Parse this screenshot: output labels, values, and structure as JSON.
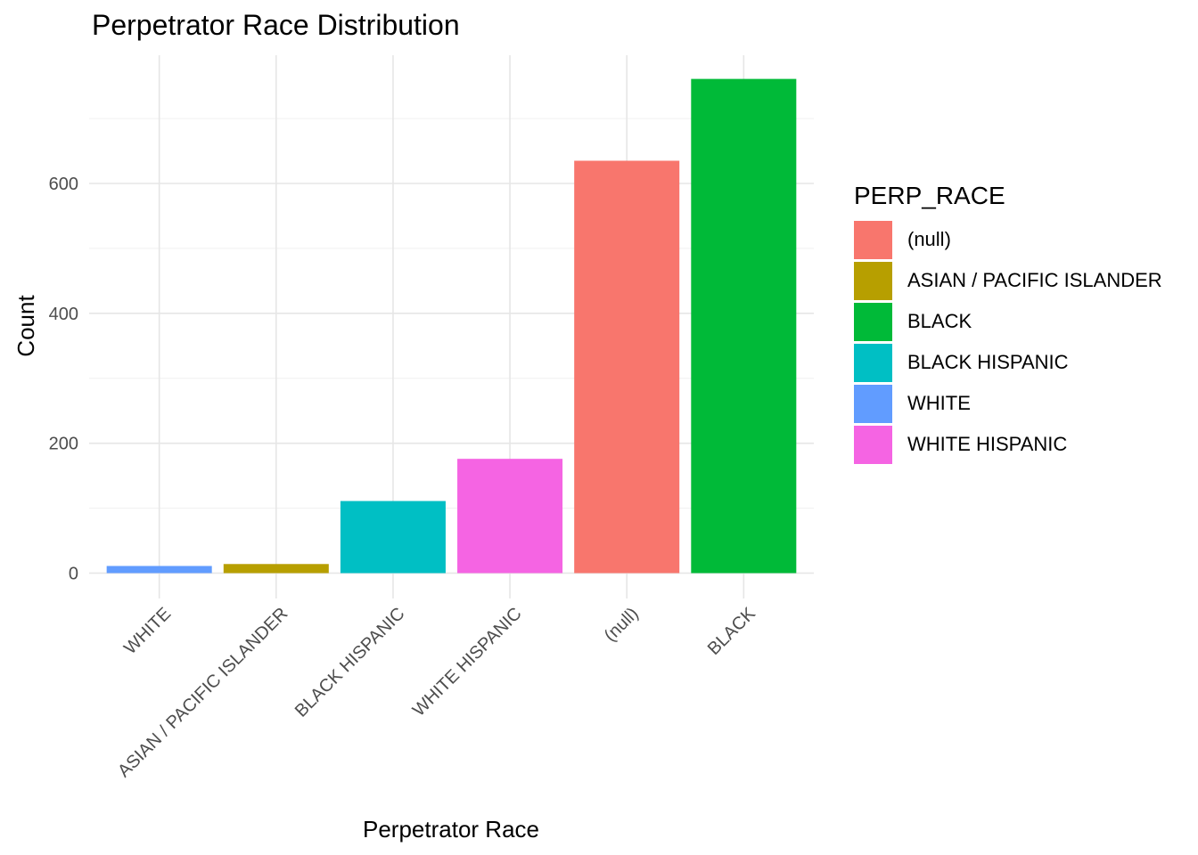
{
  "chart_data": {
    "type": "bar",
    "title": "Perpetrator Race Distribution",
    "xlabel": "Perpetrator Race",
    "ylabel": "Count",
    "categories": [
      "WHITE",
      "ASIAN / PACIFIC ISLANDER",
      "BLACK HISPANIC",
      "WHITE HISPANIC",
      "(null)",
      "BLACK"
    ],
    "values": [
      11,
      14,
      111,
      176,
      635,
      761
    ],
    "bar_colors": [
      "#619CFF",
      "#B79F00",
      "#00BFC4",
      "#F564E3",
      "#F8766D",
      "#00BA38"
    ],
    "ylim": [
      0,
      761
    ],
    "yticks": [
      0,
      200,
      400,
      600
    ],
    "grid": true,
    "legend": {
      "title": "PERP_RACE",
      "placement": "right",
      "items": [
        {
          "label": "(null)",
          "color": "#F8766D"
        },
        {
          "label": "ASIAN / PACIFIC ISLANDER",
          "color": "#B79F00"
        },
        {
          "label": "BLACK",
          "color": "#00BA38"
        },
        {
          "label": "BLACK HISPANIC",
          "color": "#00BFC4"
        },
        {
          "label": "WHITE",
          "color": "#619CFF"
        },
        {
          "label": "WHITE HISPANIC",
          "color": "#F564E3"
        }
      ]
    }
  }
}
